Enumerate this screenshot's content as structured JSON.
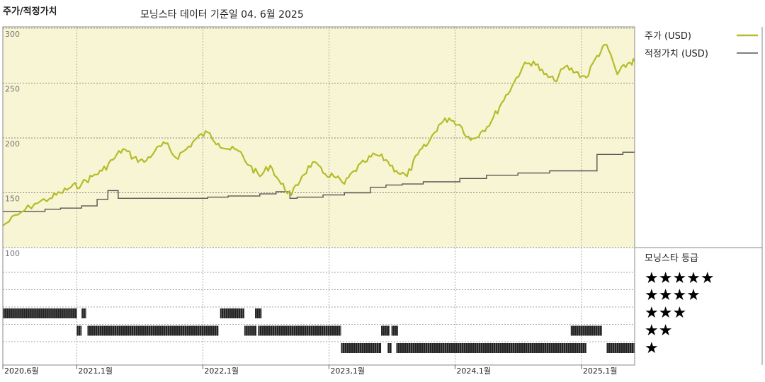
{
  "header": {
    "title": "주가/적정가치",
    "subtitle": "모닝스타 데이터 기준일 04. 6월 2025"
  },
  "colors": {
    "panel_bg": "#f8f5d4",
    "price_line": "#b5bb2a",
    "fair_value_line": "#555555",
    "rating_bar": "#222222"
  },
  "chart_data": {
    "type": "line",
    "title": "주가/적정가치",
    "ylim": [
      100,
      300
    ],
    "yticks": [
      100,
      150,
      200,
      250,
      300
    ],
    "x_ticks": [
      "2020,6월",
      "2021,1월",
      "2022,1월",
      "2023,1월",
      "2024,1월",
      "2025,1월"
    ],
    "x_tick_dates": [
      "2020-06-01",
      "2021-01-01",
      "2022-01-01",
      "2023-01-01",
      "2024-01-01",
      "2025-01-01"
    ],
    "x_range": [
      "2020-06-01",
      "2025-06-04"
    ],
    "grid": true,
    "legend_position": "right",
    "series": [
      {
        "name": "주가 (USD)",
        "points": [
          [
            "2020-06-01",
            120
          ],
          [
            "2020-07-15",
            130
          ],
          [
            "2020-09-01",
            140
          ],
          [
            "2020-10-15",
            145
          ],
          [
            "2020-11-15",
            150
          ],
          [
            "2020-12-15",
            155
          ],
          [
            "2021-01-15",
            158
          ],
          [
            "2021-02-15",
            165
          ],
          [
            "2021-03-15",
            170
          ],
          [
            "2021-04-15",
            180
          ],
          [
            "2021-05-15",
            190
          ],
          [
            "2021-06-15",
            182
          ],
          [
            "2021-07-15",
            178
          ],
          [
            "2021-08-15",
            188
          ],
          [
            "2021-09-15",
            195
          ],
          [
            "2021-10-15",
            182
          ],
          [
            "2021-11-15",
            190
          ],
          [
            "2021-12-15",
            200
          ],
          [
            "2022-01-15",
            205
          ],
          [
            "2022-02-15",
            195
          ],
          [
            "2022-03-15",
            190
          ],
          [
            "2022-04-15",
            188
          ],
          [
            "2022-05-15",
            175
          ],
          [
            "2022-06-15",
            165
          ],
          [
            "2022-07-15",
            175
          ],
          [
            "2022-08-15",
            158
          ],
          [
            "2022-09-15",
            148
          ],
          [
            "2022-10-15",
            165
          ],
          [
            "2022-11-15",
            178
          ],
          [
            "2022-12-15",
            168
          ],
          [
            "2023-01-15",
            165
          ],
          [
            "2023-02-15",
            158
          ],
          [
            "2023-03-15",
            170
          ],
          [
            "2023-04-15",
            178
          ],
          [
            "2023-05-15",
            185
          ],
          [
            "2023-06-15",
            180
          ],
          [
            "2023-07-15",
            170
          ],
          [
            "2023-08-15",
            165
          ],
          [
            "2023-09-15",
            185
          ],
          [
            "2023-10-15",
            195
          ],
          [
            "2023-11-15",
            212
          ],
          [
            "2023-12-15",
            218
          ],
          [
            "2024-01-15",
            212
          ],
          [
            "2024-02-15",
            198
          ],
          [
            "2024-03-15",
            205
          ],
          [
            "2024-04-15",
            215
          ],
          [
            "2024-05-15",
            232
          ],
          [
            "2024-06-15",
            248
          ],
          [
            "2024-07-15",
            265
          ],
          [
            "2024-08-15",
            270
          ],
          [
            "2024-09-15",
            258
          ],
          [
            "2024-10-15",
            252
          ],
          [
            "2024-11-15",
            265
          ],
          [
            "2024-12-15",
            260
          ],
          [
            "2025-01-15",
            255
          ],
          [
            "2025-02-15",
            275
          ],
          [
            "2025-03-15",
            285
          ],
          [
            "2025-04-15",
            258
          ],
          [
            "2025-05-15",
            268
          ],
          [
            "2025-06-04",
            270
          ]
        ]
      },
      {
        "name": "적정가치 (USD)",
        "step": true,
        "points": [
          [
            "2020-06-01",
            133
          ],
          [
            "2020-10-01",
            135
          ],
          [
            "2020-11-15",
            136
          ],
          [
            "2021-01-15",
            138
          ],
          [
            "2021-03-01",
            144
          ],
          [
            "2021-04-01",
            152
          ],
          [
            "2021-05-01",
            145
          ],
          [
            "2022-01-15",
            146
          ],
          [
            "2022-03-15",
            147
          ],
          [
            "2022-06-15",
            149
          ],
          [
            "2022-08-01",
            151
          ],
          [
            "2022-09-10",
            145
          ],
          [
            "2022-10-01",
            146
          ],
          [
            "2022-12-15",
            148
          ],
          [
            "2023-02-15",
            150
          ],
          [
            "2023-05-01",
            155
          ],
          [
            "2023-06-15",
            157
          ],
          [
            "2023-08-01",
            158
          ],
          [
            "2023-10-01",
            160
          ],
          [
            "2024-01-15",
            163
          ],
          [
            "2024-04-01",
            166
          ],
          [
            "2024-07-01",
            168
          ],
          [
            "2024-10-01",
            170
          ],
          [
            "2025-02-15",
            185
          ],
          [
            "2025-05-01",
            187
          ],
          [
            "2025-06-04",
            187
          ]
        ]
      }
    ],
    "rating_panel": {
      "title": "모닝스타 등급",
      "levels": [
        "★★★★★",
        "★★★★",
        "★★★",
        "★★",
        "★"
      ],
      "segments": [
        {
          "stars": 3,
          "from": "2020-06-01",
          "to": "2021-01-01"
        },
        {
          "stars": 3,
          "from": "2021-01-15",
          "to": "2021-01-28"
        },
        {
          "stars": 2,
          "from": "2021-01-01",
          "to": "2021-01-15"
        },
        {
          "stars": 2,
          "from": "2021-02-01",
          "to": "2022-02-15"
        },
        {
          "stars": 3,
          "from": "2022-02-20",
          "to": "2022-05-01"
        },
        {
          "stars": 3,
          "from": "2022-06-01",
          "to": "2022-06-20"
        },
        {
          "stars": 2,
          "from": "2022-05-01",
          "to": "2022-06-05"
        },
        {
          "stars": 2,
          "from": "2022-06-10",
          "to": "2023-02-05"
        },
        {
          "stars": 1,
          "from": "2023-02-05",
          "to": "2023-06-01"
        },
        {
          "stars": 1,
          "from": "2023-06-20",
          "to": "2023-07-01"
        },
        {
          "stars": 1,
          "from": "2023-07-15",
          "to": "2025-01-15"
        },
        {
          "stars": 2,
          "from": "2023-06-01",
          "to": "2023-06-25"
        },
        {
          "stars": 2,
          "from": "2023-07-01",
          "to": "2023-07-20"
        },
        {
          "stars": 2,
          "from": "2024-12-01",
          "to": "2025-03-01"
        },
        {
          "stars": 1,
          "from": "2025-03-15",
          "to": "2025-06-04"
        }
      ]
    }
  }
}
